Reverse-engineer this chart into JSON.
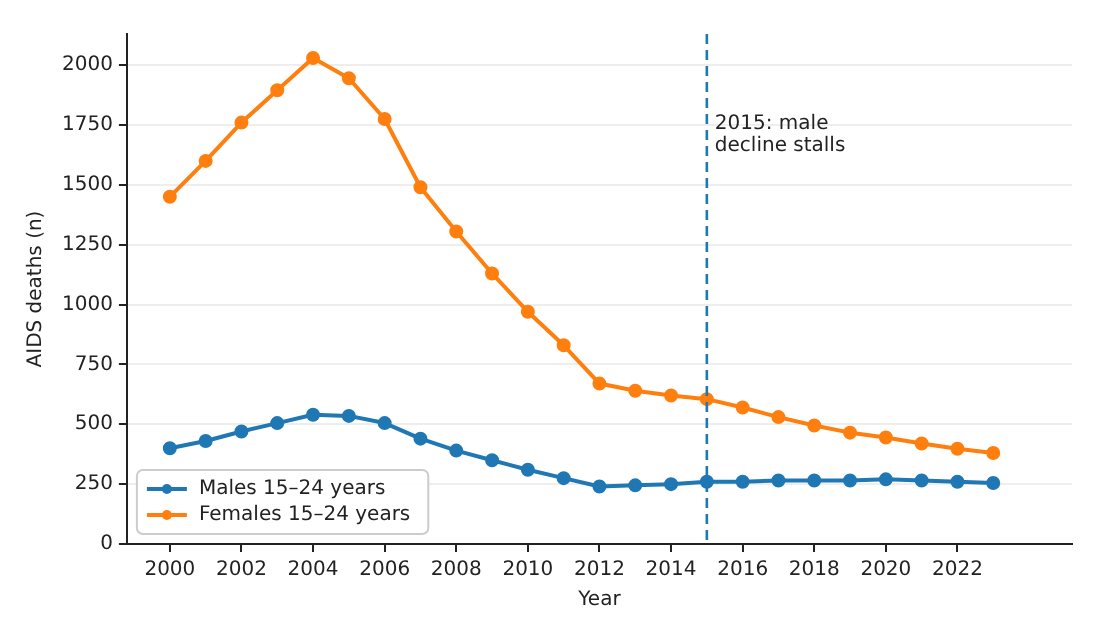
{
  "chart_data": {
    "type": "line",
    "xlabel": "Year",
    "ylabel": "AIDS deaths (n)",
    "x": [
      2000,
      2001,
      2002,
      2003,
      2004,
      2005,
      2006,
      2007,
      2008,
      2009,
      2010,
      2011,
      2012,
      2013,
      2014,
      2015,
      2016,
      2017,
      2018,
      2019,
      2020,
      2021,
      2022,
      2023
    ],
    "series": [
      {
        "name": "Males 15–24 years",
        "color": "#1f77b4",
        "values": [
          400,
          430,
          470,
          505,
          540,
          535,
          505,
          440,
          390,
          350,
          310,
          275,
          240,
          245,
          250,
          260,
          260,
          265,
          265,
          265,
          270,
          265,
          260,
          255
        ]
      },
      {
        "name": "Females 15–24 years",
        "color": "#ff7f0e",
        "values": [
          1450,
          1600,
          1760,
          1895,
          2030,
          1945,
          1775,
          1490,
          1305,
          1130,
          970,
          830,
          670,
          640,
          620,
          605,
          570,
          530,
          495,
          465,
          445,
          420,
          398,
          380
        ]
      }
    ],
    "xlim": [
      1998.8,
      2025.2
    ],
    "xticks": [
      2000,
      2002,
      2004,
      2006,
      2008,
      2010,
      2012,
      2014,
      2016,
      2018,
      2020,
      2022
    ],
    "ylim": [
      0,
      2130
    ],
    "yticks": [
      0,
      250,
      500,
      750,
      1000,
      1250,
      1500,
      1750,
      2000
    ],
    "ref_lines": [
      {
        "axis": "x",
        "value": 2015,
        "label": "2015: male decline stalls",
        "color": "#1f77b4",
        "line_style": "dashed"
      }
    ],
    "grid": "y",
    "legend": "bottom left",
    "marker": "circle",
    "line_style": "solid"
  }
}
